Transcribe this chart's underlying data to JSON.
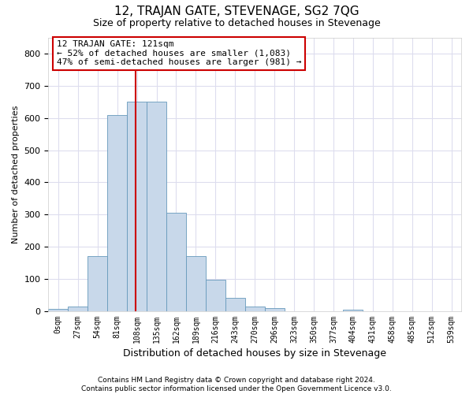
{
  "title": "12, TRAJAN GATE, STEVENAGE, SG2 7QG",
  "subtitle": "Size of property relative to detached houses in Stevenage",
  "xlabel": "Distribution of detached houses by size in Stevenage",
  "ylabel": "Number of detached properties",
  "bin_labels": [
    "0sqm",
    "27sqm",
    "54sqm",
    "81sqm",
    "108sqm",
    "135sqm",
    "162sqm",
    "189sqm",
    "216sqm",
    "243sqm",
    "270sqm",
    "296sqm",
    "323sqm",
    "350sqm",
    "377sqm",
    "404sqm",
    "431sqm",
    "458sqm",
    "485sqm",
    "512sqm",
    "539sqm"
  ],
  "bar_values": [
    8,
    14,
    170,
    610,
    650,
    650,
    305,
    172,
    97,
    42,
    14,
    10,
    0,
    0,
    0,
    5,
    0,
    0,
    0,
    0,
    0
  ],
  "bar_color": "#c8d8ea",
  "bar_edge_color": "#6699bb",
  "vline_bin": 4.45,
  "annotation_text": "12 TRAJAN GATE: 121sqm\n← 52% of detached houses are smaller (1,083)\n47% of semi-detached houses are larger (981) →",
  "annotation_box_color": "#ffffff",
  "annotation_box_edge_color": "#cc0000",
  "ylim": [
    0,
    850
  ],
  "yticks": [
    0,
    100,
    200,
    300,
    400,
    500,
    600,
    700,
    800
  ],
  "bg_color": "#ffffff",
  "plot_bg_color": "#ffffff",
  "footer": "Contains HM Land Registry data © Crown copyright and database right 2024.\nContains public sector information licensed under the Open Government Licence v3.0.",
  "grid_color": "#ddddee",
  "vline_color": "#cc0000",
  "title_fontsize": 11,
  "subtitle_fontsize": 9,
  "ylabel_fontsize": 8,
  "xlabel_fontsize": 9,
  "tick_fontsize": 8,
  "xtick_fontsize": 7
}
